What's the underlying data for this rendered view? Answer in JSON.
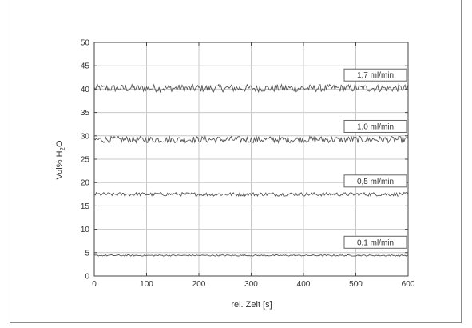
{
  "chart_data": {
    "type": "line",
    "xlabel": "rel. Zeit [s]",
    "ylabel": "Vol% H₂O",
    "xlim": [
      0,
      600
    ],
    "ylim": [
      0,
      50
    ],
    "xticks": [
      0,
      100,
      200,
      300,
      400,
      500,
      600
    ],
    "yticks": [
      0,
      5,
      10,
      15,
      20,
      25,
      30,
      35,
      40,
      45,
      50
    ],
    "xtick_labels": [
      "0",
      "100",
      "200",
      "300",
      "400",
      "500",
      "600"
    ],
    "ytick_labels": [
      "0",
      "5",
      "10",
      "15",
      "20",
      "25",
      "30",
      "35",
      "40",
      "45",
      "50"
    ],
    "grid": true,
    "series": [
      {
        "name": "1,7 ml/min",
        "level": 40.2,
        "noise": 0.8,
        "x": [
          0,
          600
        ],
        "y": [
          40.2,
          40.2
        ]
      },
      {
        "name": "1,0 ml/min",
        "level": 29.2,
        "noise": 0.7,
        "x": [
          0,
          600
        ],
        "y": [
          29.2,
          29.2
        ]
      },
      {
        "name": "0,5 ml/min",
        "level": 17.5,
        "noise": 0.4,
        "x": [
          0,
          600
        ],
        "y": [
          17.5,
          17.5
        ]
      },
      {
        "name": "0,1 ml/min",
        "level": 4.4,
        "noise": 0.15,
        "x": [
          0,
          600
        ],
        "y": [
          4.4,
          4.4
        ]
      }
    ],
    "colors": {
      "line": "#555555",
      "grid": "#c8c8c8",
      "axis": "#444444",
      "text": "#333333"
    }
  }
}
